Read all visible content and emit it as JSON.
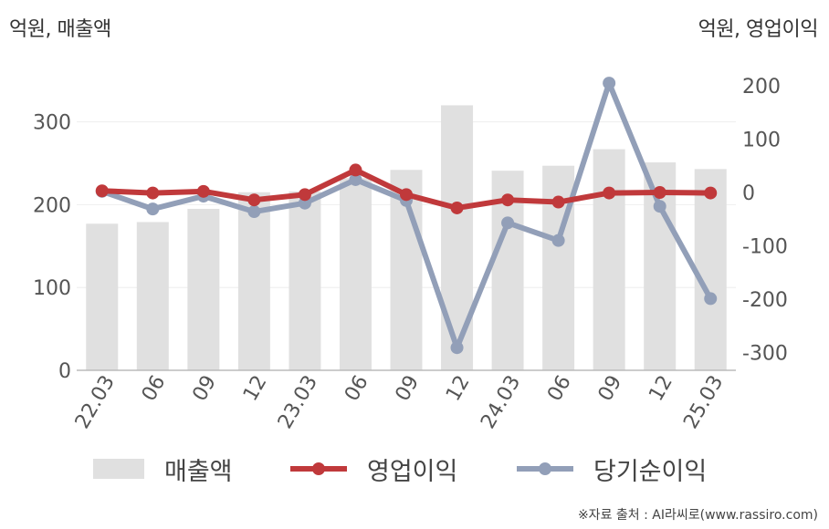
{
  "left_axis_title": "억원, 매출액",
  "right_axis_title": "억원, 영업이익",
  "source": "※자료 출처 : AI라씨로(www.rassiro.com)",
  "colors": {
    "bar": "#e0e0e0",
    "operating": "#c0393b",
    "net": "#929fb8",
    "axis": "#bbbbbb",
    "grid": "#eeeeee"
  },
  "chart_data": {
    "type": "bar",
    "categories": [
      "22.03",
      "06",
      "09",
      "12",
      "23.03",
      "06",
      "09",
      "12",
      "24.03",
      "06",
      "09",
      "12",
      "25.03"
    ],
    "series": [
      {
        "name": "매출액",
        "type": "bar",
        "axis": "left",
        "values": [
          177,
          179,
          195,
          215,
          216,
          232,
          242,
          320,
          241,
          247,
          267,
          251,
          243
        ]
      },
      {
        "name": "영업이익",
        "type": "line",
        "axis": "right",
        "values": [
          3,
          -1,
          2,
          -14,
          -4,
          42,
          -4,
          -29,
          -14,
          -18,
          -1,
          0,
          -1
        ]
      },
      {
        "name": "당기순이익",
        "type": "line",
        "axis": "right",
        "values": [
          2,
          -31,
          -7,
          -36,
          -20,
          24,
          -15,
          -291,
          -57,
          -90,
          205,
          -26,
          -199
        ]
      }
    ],
    "left_axis": {
      "ylim": [
        0,
        350
      ],
      "ticks": [
        "0",
        "100",
        "200",
        "300"
      ]
    },
    "right_axis": {
      "ylim": [
        -340,
        240
      ],
      "ticks": [
        "200",
        "100",
        "0",
        "-100",
        "-200",
        "-300"
      ]
    },
    "grid": true,
    "legend": "bottom"
  }
}
